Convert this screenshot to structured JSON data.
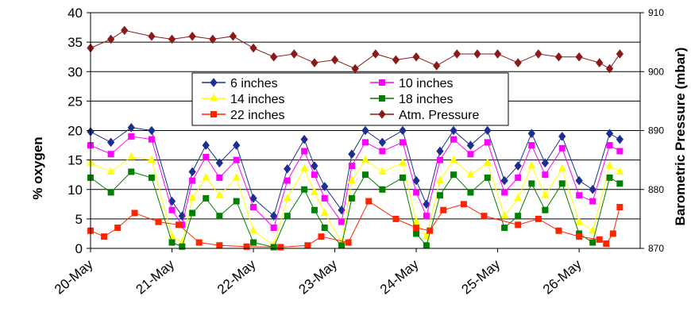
{
  "chart_data": {
    "type": "line",
    "xlabel": "",
    "ylabel": "% oxygen",
    "y2label": "Barometric Pressure (mbar)",
    "xlim": [
      "2000-05-20",
      "2000-05-26 18:00"
    ],
    "x_ticks": [
      "20-May",
      "21-May",
      "22-May",
      "23-May",
      "24-May",
      "25-May",
      "26-May"
    ],
    "ylim": [
      0,
      40
    ],
    "y_ticks": [
      0,
      5,
      10,
      15,
      20,
      25,
      30,
      35,
      40
    ],
    "y2lim": [
      870,
      910
    ],
    "y2_ticks": [
      870,
      880,
      890,
      900,
      910
    ],
    "grid": "horizontal",
    "legend_placement": "center",
    "series": [
      {
        "name": "6 inches",
        "axis": "left",
        "color": "#1c2f8f",
        "marker": "diamond",
        "points": [
          [
            "2000-05-20 00:00",
            19.8
          ],
          [
            "2000-05-20 06:00",
            18.0
          ],
          [
            "2000-05-20 12:00",
            20.5
          ],
          [
            "2000-05-20 18:00",
            20.0
          ],
          [
            "2000-05-21 00:00",
            8.0
          ],
          [
            "2000-05-21 03:00",
            5.5
          ],
          [
            "2000-05-21 06:00",
            13.0
          ],
          [
            "2000-05-21 10:00",
            17.5
          ],
          [
            "2000-05-21 14:00",
            14.5
          ],
          [
            "2000-05-21 19:00",
            17.5
          ],
          [
            "2000-05-22 00:00",
            8.5
          ],
          [
            "2000-05-22 06:00",
            5.5
          ],
          [
            "2000-05-22 10:00",
            13.5
          ],
          [
            "2000-05-22 15:00",
            18.5
          ],
          [
            "2000-05-22 18:00",
            14.0
          ],
          [
            "2000-05-22 21:00",
            10.5
          ],
          [
            "2000-05-23 02:00",
            6.5
          ],
          [
            "2000-05-23 05:00",
            16.0
          ],
          [
            "2000-05-23 09:00",
            20.0
          ],
          [
            "2000-05-23 14:00",
            18.0
          ],
          [
            "2000-05-23 20:00",
            20.0
          ],
          [
            "2000-05-24 00:00",
            11.5
          ],
          [
            "2000-05-24 03:00",
            7.5
          ],
          [
            "2000-05-24 07:00",
            16.5
          ],
          [
            "2000-05-24 11:00",
            20.0
          ],
          [
            "2000-05-24 16:00",
            17.5
          ],
          [
            "2000-05-24 21:00",
            20.0
          ],
          [
            "2000-05-25 02:00",
            11.5
          ],
          [
            "2000-05-25 06:00",
            14.0
          ],
          [
            "2000-05-25 10:00",
            19.5
          ],
          [
            "2000-05-25 14:00",
            14.5
          ],
          [
            "2000-05-25 19:00",
            19.0
          ],
          [
            "2000-05-26 00:00",
            11.5
          ],
          [
            "2000-05-26 04:00",
            10.0
          ],
          [
            "2000-05-26 09:00",
            19.5
          ],
          [
            "2000-05-26 12:00",
            18.5
          ]
        ]
      },
      {
        "name": "10 inches",
        "axis": "left",
        "color": "#ff00ff",
        "marker": "square",
        "points": [
          [
            "2000-05-20 00:00",
            17.5
          ],
          [
            "2000-05-20 06:00",
            16.0
          ],
          [
            "2000-05-20 12:00",
            19.0
          ],
          [
            "2000-05-20 18:00",
            18.5
          ],
          [
            "2000-05-21 00:00",
            6.5
          ],
          [
            "2000-05-21 03:00",
            4.0
          ],
          [
            "2000-05-21 06:00",
            11.5
          ],
          [
            "2000-05-21 10:00",
            15.5
          ],
          [
            "2000-05-21 14:00",
            12.0
          ],
          [
            "2000-05-21 19:00",
            15.0
          ],
          [
            "2000-05-22 00:00",
            7.0
          ],
          [
            "2000-05-22 06:00",
            3.5
          ],
          [
            "2000-05-22 10:00",
            11.5
          ],
          [
            "2000-05-22 15:00",
            16.5
          ],
          [
            "2000-05-22 18:00",
            12.5
          ],
          [
            "2000-05-22 21:00",
            8.5
          ],
          [
            "2000-05-23 02:00",
            4.5
          ],
          [
            "2000-05-23 05:00",
            14.0
          ],
          [
            "2000-05-23 09:00",
            18.0
          ],
          [
            "2000-05-23 14:00",
            16.5
          ],
          [
            "2000-05-23 20:00",
            18.0
          ],
          [
            "2000-05-24 00:00",
            9.5
          ],
          [
            "2000-05-24 03:00",
            5.5
          ],
          [
            "2000-05-24 07:00",
            15.0
          ],
          [
            "2000-05-24 11:00",
            18.5
          ],
          [
            "2000-05-24 16:00",
            16.0
          ],
          [
            "2000-05-24 21:00",
            18.0
          ],
          [
            "2000-05-25 02:00",
            9.5
          ],
          [
            "2000-05-25 06:00",
            12.0
          ],
          [
            "2000-05-25 10:00",
            17.5
          ],
          [
            "2000-05-25 14:00",
            12.5
          ],
          [
            "2000-05-25 19:00",
            17.0
          ],
          [
            "2000-05-26 00:00",
            9.0
          ],
          [
            "2000-05-26 04:00",
            8.0
          ],
          [
            "2000-05-26 09:00",
            17.5
          ],
          [
            "2000-05-26 12:00",
            16.5
          ]
        ]
      },
      {
        "name": "14 inches",
        "axis": "left",
        "color": "#ffff00",
        "marker": "triangle",
        "points": [
          [
            "2000-05-20 00:00",
            14.5
          ],
          [
            "2000-05-20 06:00",
            13.0
          ],
          [
            "2000-05-20 12:00",
            15.5
          ],
          [
            "2000-05-20 18:00",
            15.0
          ],
          [
            "2000-05-21 00:00",
            2.0
          ],
          [
            "2000-05-21 03:00",
            1.0
          ],
          [
            "2000-05-21 06:00",
            8.5
          ],
          [
            "2000-05-21 10:00",
            12.0
          ],
          [
            "2000-05-21 14:00",
            9.0
          ],
          [
            "2000-05-21 19:00",
            12.0
          ],
          [
            "2000-05-22 00:00",
            3.0
          ],
          [
            "2000-05-22 06:00",
            0.5
          ],
          [
            "2000-05-22 10:00",
            8.5
          ],
          [
            "2000-05-22 15:00",
            13.5
          ],
          [
            "2000-05-22 18:00",
            9.5
          ],
          [
            "2000-05-22 21:00",
            6.0
          ],
          [
            "2000-05-23 02:00",
            1.0
          ],
          [
            "2000-05-23 05:00",
            11.5
          ],
          [
            "2000-05-23 09:00",
            15.0
          ],
          [
            "2000-05-23 14:00",
            13.0
          ],
          [
            "2000-05-23 20:00",
            14.5
          ],
          [
            "2000-05-24 00:00",
            4.5
          ],
          [
            "2000-05-24 03:00",
            2.0
          ],
          [
            "2000-05-24 07:00",
            11.5
          ],
          [
            "2000-05-24 11:00",
            15.0
          ],
          [
            "2000-05-24 16:00",
            12.5
          ],
          [
            "2000-05-24 21:00",
            14.5
          ],
          [
            "2000-05-25 02:00",
            5.5
          ],
          [
            "2000-05-25 06:00",
            8.5
          ],
          [
            "2000-05-25 10:00",
            14.0
          ],
          [
            "2000-05-25 14:00",
            9.0
          ],
          [
            "2000-05-25 19:00",
            13.5
          ],
          [
            "2000-05-26 00:00",
            4.5
          ],
          [
            "2000-05-26 04:00",
            3.0
          ],
          [
            "2000-05-26 09:00",
            14.0
          ],
          [
            "2000-05-26 12:00",
            13.0
          ]
        ]
      },
      {
        "name": "18 inches",
        "axis": "left",
        "color": "#008000",
        "marker": "square",
        "points": [
          [
            "2000-05-20 00:00",
            12.0
          ],
          [
            "2000-05-20 06:00",
            9.5
          ],
          [
            "2000-05-20 12:00",
            13.0
          ],
          [
            "2000-05-20 18:00",
            12.0
          ],
          [
            "2000-05-21 00:00",
            1.0
          ],
          [
            "2000-05-21 03:00",
            0.3
          ],
          [
            "2000-05-21 06:00",
            6.0
          ],
          [
            "2000-05-21 10:00",
            8.5
          ],
          [
            "2000-05-21 14:00",
            5.5
          ],
          [
            "2000-05-21 19:00",
            8.0
          ],
          [
            "2000-05-22 00:00",
            1.0
          ],
          [
            "2000-05-22 06:00",
            0.2
          ],
          [
            "2000-05-22 10:00",
            5.5
          ],
          [
            "2000-05-22 15:00",
            10.0
          ],
          [
            "2000-05-22 18:00",
            6.5
          ],
          [
            "2000-05-22 21:00",
            3.5
          ],
          [
            "2000-05-23 02:00",
            0.5
          ],
          [
            "2000-05-23 05:00",
            8.5
          ],
          [
            "2000-05-23 09:00",
            12.5
          ],
          [
            "2000-05-23 14:00",
            10.0
          ],
          [
            "2000-05-23 20:00",
            12.0
          ],
          [
            "2000-05-24 00:00",
            2.5
          ],
          [
            "2000-05-24 03:00",
            0.5
          ],
          [
            "2000-05-24 07:00",
            9.0
          ],
          [
            "2000-05-24 11:00",
            12.5
          ],
          [
            "2000-05-24 16:00",
            9.5
          ],
          [
            "2000-05-24 21:00",
            12.0
          ],
          [
            "2000-05-25 02:00",
            3.5
          ],
          [
            "2000-05-25 06:00",
            5.5
          ],
          [
            "2000-05-25 10:00",
            11.0
          ],
          [
            "2000-05-25 14:00",
            6.5
          ],
          [
            "2000-05-25 19:00",
            11.0
          ],
          [
            "2000-05-26 00:00",
            2.5
          ],
          [
            "2000-05-26 04:00",
            1.0
          ],
          [
            "2000-05-26 09:00",
            12.0
          ],
          [
            "2000-05-26 12:00",
            11.0
          ]
        ]
      },
      {
        "name": "22 inches",
        "axis": "left",
        "color": "#ff2400",
        "marker": "square",
        "points": [
          [
            "2000-05-20 00:00",
            3.0
          ],
          [
            "2000-05-20 04:00",
            2.0
          ],
          [
            "2000-05-20 08:00",
            3.5
          ],
          [
            "2000-05-20 13:00",
            6.0
          ],
          [
            "2000-05-20 20:00",
            4.5
          ],
          [
            "2000-05-21 02:00",
            4.0
          ],
          [
            "2000-05-21 08:00",
            1.0
          ],
          [
            "2000-05-21 14:00",
            0.5
          ],
          [
            "2000-05-21 22:00",
            0.3
          ],
          [
            "2000-05-22 08:00",
            0.2
          ],
          [
            "2000-05-22 16:00",
            0.5
          ],
          [
            "2000-05-22 20:00",
            2.0
          ],
          [
            "2000-05-23 04:00",
            1.0
          ],
          [
            "2000-05-23 10:00",
            8.0
          ],
          [
            "2000-05-23 18:00",
            5.0
          ],
          [
            "2000-05-24 00:00",
            3.5
          ],
          [
            "2000-05-24 04:00",
            3.0
          ],
          [
            "2000-05-24 08:00",
            6.5
          ],
          [
            "2000-05-24 14:00",
            7.5
          ],
          [
            "2000-05-24 20:00",
            5.5
          ],
          [
            "2000-05-25 06:00",
            4.0
          ],
          [
            "2000-05-25 12:00",
            5.0
          ],
          [
            "2000-05-25 18:00",
            3.0
          ],
          [
            "2000-05-26 00:00",
            2.0
          ],
          [
            "2000-05-26 06:00",
            1.5
          ],
          [
            "2000-05-26 08:00",
            0.8
          ],
          [
            "2000-05-26 10:00",
            2.5
          ],
          [
            "2000-05-26 12:00",
            7.0
          ]
        ]
      },
      {
        "name": "Atm. Pressure",
        "axis": "right",
        "color": "#8b1a1a",
        "marker": "diamond",
        "points": [
          [
            "2000-05-20 00:00",
            904.0
          ],
          [
            "2000-05-20 06:00",
            905.5
          ],
          [
            "2000-05-20 10:00",
            907.0
          ],
          [
            "2000-05-20 18:00",
            906.0
          ],
          [
            "2000-05-21 00:00",
            905.5
          ],
          [
            "2000-05-21 06:00",
            906.0
          ],
          [
            "2000-05-21 12:00",
            905.5
          ],
          [
            "2000-05-21 18:00",
            906.0
          ],
          [
            "2000-05-22 00:00",
            904.0
          ],
          [
            "2000-05-22 06:00",
            902.5
          ],
          [
            "2000-05-22 12:00",
            903.0
          ],
          [
            "2000-05-22 18:00",
            901.5
          ],
          [
            "2000-05-23 00:00",
            902.0
          ],
          [
            "2000-05-23 06:00",
            900.5
          ],
          [
            "2000-05-23 12:00",
            903.0
          ],
          [
            "2000-05-23 18:00",
            902.0
          ],
          [
            "2000-05-24 00:00",
            902.5
          ],
          [
            "2000-05-24 06:00",
            901.0
          ],
          [
            "2000-05-24 12:00",
            903.0
          ],
          [
            "2000-05-24 18:00",
            903.0
          ],
          [
            "2000-05-25 00:00",
            903.0
          ],
          [
            "2000-05-25 06:00",
            901.5
          ],
          [
            "2000-05-25 12:00",
            903.0
          ],
          [
            "2000-05-25 18:00",
            902.5
          ],
          [
            "2000-05-26 00:00",
            902.5
          ],
          [
            "2000-05-26 06:00",
            901.5
          ],
          [
            "2000-05-26 09:00",
            900.5
          ],
          [
            "2000-05-26 12:00",
            903.0
          ]
        ]
      }
    ]
  }
}
